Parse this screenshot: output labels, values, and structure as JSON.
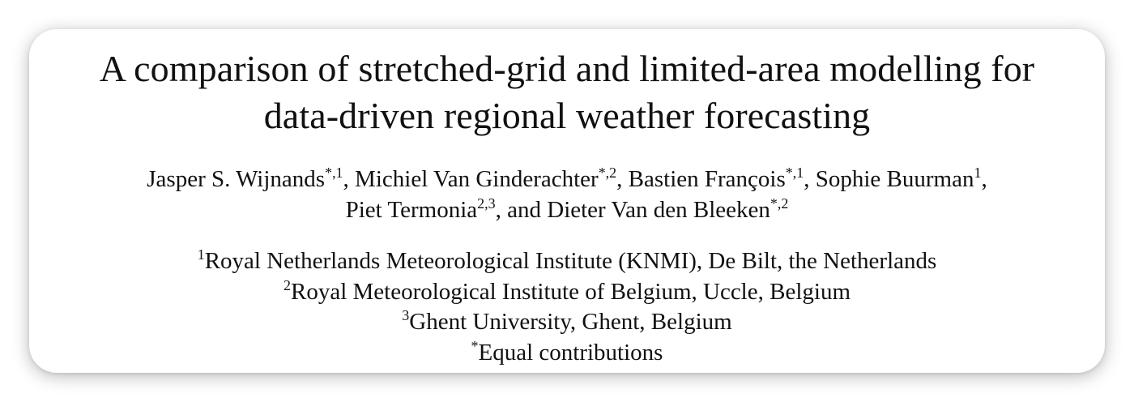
{
  "title": {
    "line1": "A comparison of stretched-grid and limited-area modelling for",
    "line2": "data-driven regional weather forecasting"
  },
  "authors": [
    {
      "name": "Jasper S. Wijnands",
      "marks": "*,1",
      "sep": ", "
    },
    {
      "name": "Michiel Van Ginderachter",
      "marks": "*,2",
      "sep": ", "
    },
    {
      "name": "Bastien François",
      "marks": "*,1",
      "sep": ", "
    },
    {
      "name": "Sophie Buurman",
      "marks": "1",
      "sep": ","
    },
    {
      "name": "Piet Termonia",
      "marks": "2,3",
      "sep": ", and "
    },
    {
      "name": "Dieter Van den Bleeken",
      "marks": "*,2",
      "sep": ""
    }
  ],
  "affiliations": [
    {
      "mark": "1",
      "text": "Royal Netherlands Meteorological Institute (KNMI), De Bilt, the Netherlands"
    },
    {
      "mark": "2",
      "text": "Royal Meteorological Institute of Belgium, Uccle, Belgium"
    },
    {
      "mark": "3",
      "text": "Ghent University, Ghent, Belgium"
    },
    {
      "mark": "*",
      "text": "Equal contributions"
    }
  ]
}
